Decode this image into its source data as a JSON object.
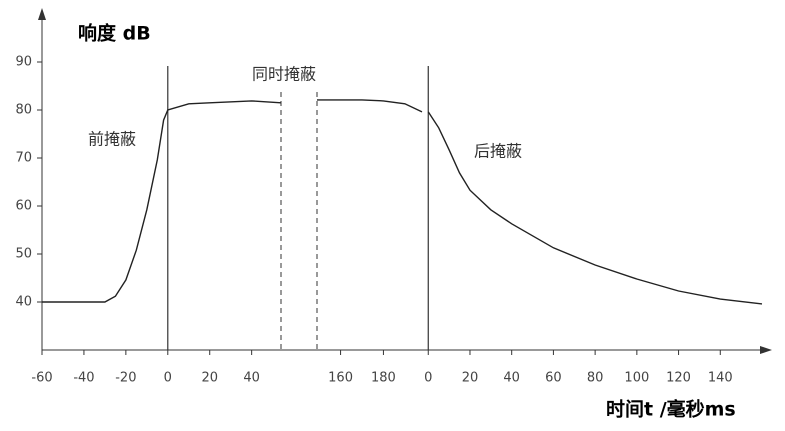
{
  "chart_data": {
    "type": "line",
    "y_label": "响度 dB",
    "x_label": "时间t /毫秒ms",
    "ylim": [
      30,
      100
    ],
    "yticks": [
      40,
      50,
      60,
      70,
      80,
      90
    ],
    "color": "#222222",
    "panels": [
      {
        "xlim": [
          -60,
          54
        ],
        "xticks": [
          -60,
          -40,
          -20,
          0,
          20,
          40
        ],
        "vline": 0,
        "x": [
          -60,
          -30,
          -25,
          -20,
          -15,
          -10,
          -5,
          -2,
          0,
          10,
          20,
          40,
          54
        ],
        "values": [
          40,
          40,
          41.2,
          44.6,
          50.8,
          59.2,
          69.6,
          77.9,
          80,
          81.3,
          81.5,
          81.9,
          81.5
        ]
      },
      {
        "xlim": [
          149,
          198
        ],
        "xticks": [
          160,
          180
        ],
        "x": [
          149,
          170,
          180,
          190,
          198
        ],
        "values": [
          82.1,
          82.1,
          81.9,
          81.3,
          79.6
        ]
      },
      {
        "xlim": [
          -3,
          160
        ],
        "xticks": [
          0,
          20,
          40,
          60,
          80,
          100,
          120,
          140
        ],
        "vline": 0,
        "x": [
          0,
          5,
          10,
          15,
          20,
          30,
          40,
          60,
          80,
          100,
          120,
          140,
          160
        ],
        "values": [
          79.6,
          76.3,
          71.7,
          66.9,
          63.3,
          59.2,
          56.3,
          51.3,
          47.7,
          44.8,
          42.3,
          40.6,
          39.6
        ]
      }
    ],
    "annotations": [
      "前掩蔽",
      "同时掩蔽",
      "后掩蔽"
    ]
  }
}
